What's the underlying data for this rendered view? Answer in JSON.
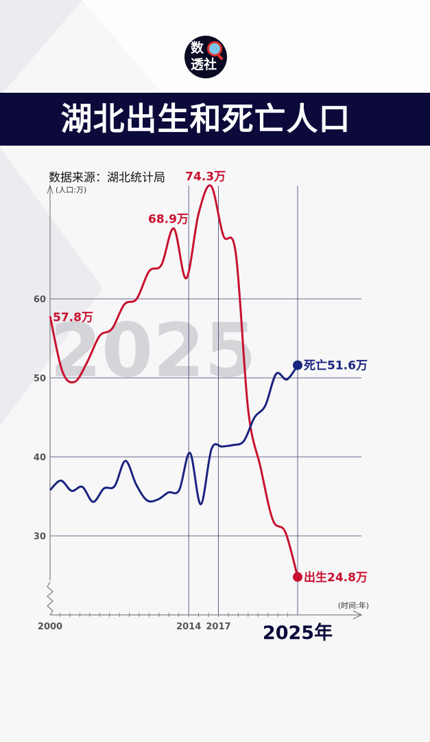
{
  "header": {
    "logo_line1": "数",
    "logo_line2": "透社",
    "title": "湖北出生和死亡人口"
  },
  "source": "数据来源：湖北统计局",
  "chart_data": {
    "type": "line",
    "watermark": "2025",
    "ylabel": "(人口:万)",
    "xlabel": "(时间:年)",
    "ylim": [
      20,
      80
    ],
    "xlim": [
      2000,
      2025
    ],
    "yticks": [
      60,
      50,
      40,
      30
    ],
    "xticks": [
      {
        "value": 2000,
        "label": "2000"
      },
      {
        "value": 2014,
        "label": "2014"
      },
      {
        "value": 2017,
        "label": "2017"
      },
      {
        "value": 2025,
        "label": "2025年"
      }
    ],
    "vlines": [
      2014,
      2017,
      2025
    ],
    "colors": {
      "birth": "#c8102e",
      "death": "#1a237e",
      "grid": "#3a3a6a"
    },
    "series": [
      {
        "key": "birth",
        "x": [
          2000,
          2001,
          2002,
          2003,
          2004,
          2005,
          2006,
          2007,
          2008,
          2009,
          2010,
          2011,
          2012,
          2013,
          2014,
          2015,
          2016,
          2017,
          2018,
          2019,
          2020,
          2021,
          2022,
          2023,
          2024,
          2025
        ],
        "values": [
          57.8,
          50.8,
          49.5,
          52.0,
          55.3,
          56.2,
          59.3,
          60.0,
          63.5,
          64.3,
          68.9,
          62.6,
          70.8,
          74.3,
          68.0,
          65.8,
          46.0,
          38.7,
          32.0,
          30.5,
          24.8,
          null,
          null,
          null,
          null,
          null
        ]
      },
      {
        "key": "death",
        "x": [
          2000,
          2001,
          2002,
          2003,
          2004,
          2005,
          2006,
          2007,
          2008,
          2009,
          2010,
          2011,
          2012,
          2013,
          2014,
          2015,
          2016,
          2017,
          2018,
          2019,
          2020,
          2021,
          2022,
          2023,
          2024,
          2025
        ],
        "values": [
          35.8,
          37.0,
          35.7,
          36.2,
          34.3,
          36.0,
          36.3,
          39.5,
          36.5,
          34.5,
          34.6,
          35.5,
          35.8,
          40.5,
          34.0,
          41.0,
          41.3,
          41.5,
          42.0,
          45.0,
          46.5,
          50.5,
          49.8,
          51.6,
          null,
          null
        ]
      }
    ],
    "annotations": [
      {
        "series": "birth",
        "text": "57.8万"
      },
      {
        "series": "birth",
        "text": "68.9万"
      },
      {
        "series": "birth",
        "text": "74.3万"
      }
    ],
    "end_labels": [
      {
        "series": "death",
        "text": "死亡51.6万"
      },
      {
        "series": "birth",
        "text": "出生24.8万"
      }
    ]
  }
}
